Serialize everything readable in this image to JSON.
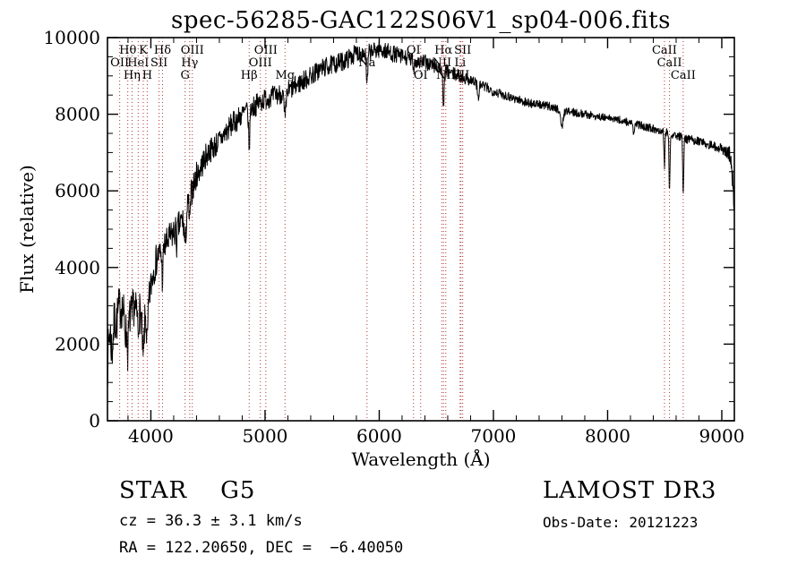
{
  "annotations": {
    "class_line": "STAR    G5",
    "cz_line": "cz = 36.3 ± 3.1 km/s",
    "radec_line": "RA = 122.20650, DEC =  −6.40050",
    "survey": "LAMOST DR3",
    "obs_date_line": "Obs-Date: 20121223"
  },
  "chart_data": {
    "type": "line",
    "title": "spec-56285-GAC122S06V1_sp04-006.fits",
    "xlabel": "Wavelength (Å)",
    "ylabel": "Flux (relative)",
    "xlim": [
      3620,
      9110
    ],
    "ylim": [
      0,
      10000
    ],
    "x_major_ticks": [
      4000,
      5000,
      6000,
      7000,
      8000,
      9000
    ],
    "x_minor_step": 200,
    "y_major_ticks": [
      0,
      2000,
      4000,
      6000,
      8000,
      10000
    ],
    "y_minor_step": 500,
    "grid": false,
    "series_color": "#000000",
    "marker_line_color": "#b03535",
    "noise_seed": 7,
    "sample_step": 3,
    "continuum_points": [
      [
        3620,
        1500
      ],
      [
        3640,
        2400
      ],
      [
        3660,
        1800
      ],
      [
        3680,
        2600
      ],
      [
        3700,
        2600
      ],
      [
        3720,
        2900
      ],
      [
        3740,
        3000
      ],
      [
        3760,
        2800
      ],
      [
        3780,
        2300
      ],
      [
        3800,
        2300
      ],
      [
        3820,
        2800
      ],
      [
        3840,
        3100
      ],
      [
        3860,
        2900
      ],
      [
        3880,
        2800
      ],
      [
        3900,
        2900
      ],
      [
        3930,
        2500
      ],
      [
        3960,
        2800
      ],
      [
        3990,
        3300
      ],
      [
        4020,
        3900
      ],
      [
        4060,
        4300
      ],
      [
        4100,
        4400
      ],
      [
        4150,
        4700
      ],
      [
        4200,
        4900
      ],
      [
        4250,
        5100
      ],
      [
        4300,
        5400
      ],
      [
        4350,
        5900
      ],
      [
        4400,
        6400
      ],
      [
        4450,
        6700
      ],
      [
        4500,
        7000
      ],
      [
        4600,
        7300
      ],
      [
        4700,
        7700
      ],
      [
        4800,
        8000
      ],
      [
        4900,
        8200
      ],
      [
        5000,
        8400
      ],
      [
        5100,
        8500
      ],
      [
        5200,
        8600
      ],
      [
        5300,
        8800
      ],
      [
        5400,
        9000
      ],
      [
        5500,
        9200
      ],
      [
        5600,
        9300
      ],
      [
        5700,
        9400
      ],
      [
        5800,
        9600
      ],
      [
        5900,
        9600
      ],
      [
        6000,
        9700
      ],
      [
        6100,
        9600
      ],
      [
        6200,
        9500
      ],
      [
        6300,
        9400
      ],
      [
        6400,
        9350
      ],
      [
        6500,
        9250
      ],
      [
        6600,
        9100
      ],
      [
        6700,
        9000
      ],
      [
        6800,
        8900
      ],
      [
        6900,
        8750
      ],
      [
        7000,
        8600
      ],
      [
        7100,
        8500
      ],
      [
        7200,
        8400
      ],
      [
        7300,
        8300
      ],
      [
        7400,
        8250
      ],
      [
        7500,
        8200
      ],
      [
        7600,
        8100
      ],
      [
        7700,
        8050
      ],
      [
        7800,
        8000
      ],
      [
        7900,
        7950
      ],
      [
        8000,
        7900
      ],
      [
        8100,
        7850
      ],
      [
        8200,
        7780
      ],
      [
        8300,
        7700
      ],
      [
        8400,
        7620
      ],
      [
        8500,
        7550
      ],
      [
        8600,
        7450
      ],
      [
        8700,
        7350
      ],
      [
        8800,
        7300
      ],
      [
        8900,
        7200
      ],
      [
        9000,
        7100
      ],
      [
        9050,
        7000
      ],
      [
        9080,
        6900
      ],
      [
        9110,
        5600
      ]
    ],
    "noise_profile": [
      [
        3620,
        650
      ],
      [
        3800,
        550
      ],
      [
        4000,
        450
      ],
      [
        4300,
        380
      ],
      [
        4600,
        320
      ],
      [
        5000,
        280
      ],
      [
        5500,
        260
      ],
      [
        6000,
        230
      ],
      [
        6500,
        200
      ],
      [
        7000,
        130
      ],
      [
        7500,
        110
      ],
      [
        8000,
        100
      ],
      [
        8500,
        110
      ],
      [
        9000,
        120
      ],
      [
        9110,
        300
      ]
    ],
    "absorption_features": [
      {
        "center": 3797.9,
        "depth": 500,
        "width": 6
      },
      {
        "center": 3835.4,
        "depth": 500,
        "width": 6
      },
      {
        "center": 3889.0,
        "depth": 500,
        "width": 6
      },
      {
        "center": 3933.7,
        "depth": 1000,
        "width": 9
      },
      {
        "center": 3968.5,
        "depth": 900,
        "width": 9
      },
      {
        "center": 4101.7,
        "depth": 700,
        "width": 7
      },
      {
        "center": 4226.7,
        "depth": 400,
        "width": 6
      },
      {
        "center": 4300.0,
        "depth": 800,
        "width": 12
      },
      {
        "center": 4340.5,
        "depth": 650,
        "width": 7
      },
      {
        "center": 4861.3,
        "depth": 950,
        "width": 8
      },
      {
        "center": 5175.0,
        "depth": 700,
        "width": 12
      },
      {
        "center": 5892.9,
        "depth": 900,
        "width": 9
      },
      {
        "center": 6300.0,
        "depth": 250,
        "width": 6
      },
      {
        "center": 6562.8,
        "depth": 1100,
        "width": 8
      },
      {
        "center": 6867.0,
        "depth": 400,
        "width": 10
      },
      {
        "center": 7600.0,
        "depth": 450,
        "width": 14
      },
      {
        "center": 8227.0,
        "depth": 250,
        "width": 10
      },
      {
        "center": 8498.0,
        "depth": 900,
        "width": 6
      },
      {
        "center": 8542.0,
        "depth": 1500,
        "width": 6
      },
      {
        "center": 8662.0,
        "depth": 1600,
        "width": 6
      }
    ],
    "spectral_lines": [
      {
        "label": "Hθ",
        "wavelength": 3798,
        "row": 0
      },
      {
        "label": "K",
        "wavelength": 3934,
        "row": 0
      },
      {
        "label": "Hδ",
        "wavelength": 4102,
        "row": 0
      },
      {
        "label": "OIII",
        "wavelength": 4363,
        "row": 0
      },
      {
        "label": "OIII",
        "wavelength": 5007,
        "row": 0
      },
      {
        "label": "OI",
        "wavelength": 6300,
        "row": 0
      },
      {
        "label": "Hα",
        "wavelength": 6563,
        "row": 0
      },
      {
        "label": "SII",
        "wavelength": 6731,
        "row": 0
      },
      {
        "label": "CaII",
        "wavelength": 8498,
        "row": 0
      },
      {
        "label": "OII",
        "wavelength": 3727,
        "row": 1
      },
      {
        "label": "HeI",
        "wavelength": 3889,
        "row": 1
      },
      {
        "label": "SII",
        "wavelength": 4072,
        "row": 1
      },
      {
        "label": "Hγ",
        "wavelength": 4340,
        "row": 1
      },
      {
        "label": "OIII",
        "wavelength": 4959,
        "row": 1
      },
      {
        "label": "Na",
        "wavelength": 5893,
        "row": 1
      },
      {
        "label": "NII",
        "wavelength": 6548,
        "row": 1
      },
      {
        "label": "Li",
        "wavelength": 6708,
        "row": 1
      },
      {
        "label": "CaII",
        "wavelength": 8542,
        "row": 1
      },
      {
        "label": "Hη",
        "wavelength": 3835,
        "row": 2
      },
      {
        "label": "H",
        "wavelength": 3968,
        "row": 2
      },
      {
        "label": "G",
        "wavelength": 4300,
        "row": 2
      },
      {
        "label": "Hβ",
        "wavelength": 4861,
        "row": 2
      },
      {
        "label": "Mg",
        "wavelength": 5175,
        "row": 2
      },
      {
        "label": "OI",
        "wavelength": 6363,
        "row": 2
      },
      {
        "label": "NII",
        "wavelength": 6583,
        "row": 2
      },
      {
        "label": "SII",
        "wavelength": 6716,
        "row": 2
      },
      {
        "label": "CaII",
        "wavelength": 8662,
        "row": 2
      }
    ]
  }
}
